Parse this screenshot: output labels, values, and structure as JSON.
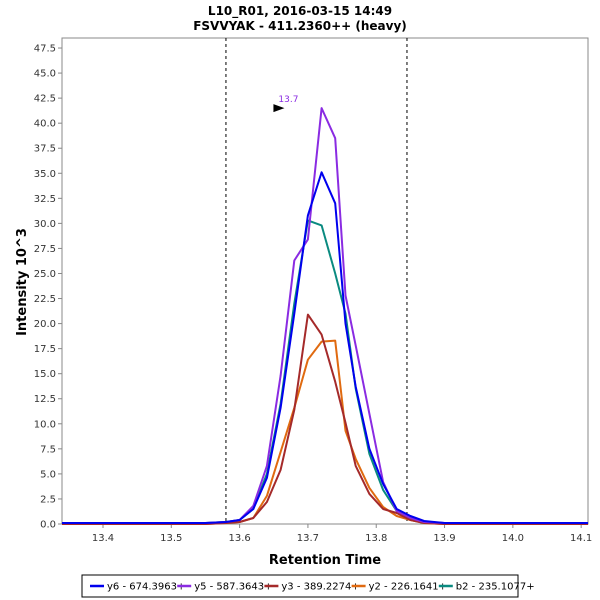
{
  "chart_data": {
    "type": "line",
    "title": "L10_R01, 2016-03-15 14:49",
    "subtitle": "FSVVYAK - 411.2360++ (heavy)",
    "xlabel": "Retention Time",
    "ylabel": "Intensity 10^3",
    "xlim": [
      13.34,
      14.11
    ],
    "ylim": [
      0,
      48.5
    ],
    "xticks": [
      "13.4",
      "13.5",
      "13.6",
      "13.7",
      "13.8",
      "13.9",
      "14.0",
      "14.1"
    ],
    "xtick_values": [
      13.4,
      13.5,
      13.6,
      13.7,
      13.8,
      13.9,
      14.0,
      14.1
    ],
    "yticks": [
      "0.0",
      "2.5",
      "5.0",
      "7.5",
      "10.0",
      "12.5",
      "15.0",
      "17.5",
      "20.0",
      "22.5",
      "25.0",
      "27.5",
      "30.0",
      "32.5",
      "35.0",
      "37.5",
      "40.0",
      "42.5",
      "45.0",
      "47.5"
    ],
    "ytick_values": [
      0,
      2.5,
      5,
      7.5,
      10,
      12.5,
      15,
      17.5,
      20,
      22.5,
      25,
      27.5,
      30,
      32.5,
      35,
      37.5,
      40,
      42.5,
      45,
      47.5
    ],
    "integration_bounds": [
      13.58,
      13.845
    ],
    "peak_annotation": {
      "label": "13.7",
      "x": 13.67,
      "y": 41.5,
      "color": "#8a2be2"
    },
    "x": [
      13.34,
      13.4,
      13.5,
      13.55,
      13.58,
      13.6,
      13.62,
      13.64,
      13.66,
      13.68,
      13.7,
      13.72,
      13.74,
      13.755,
      13.77,
      13.79,
      13.81,
      13.83,
      13.85,
      13.87,
      13.9,
      14.0,
      14.11
    ],
    "series": [
      {
        "name": "y6 - 674.3963+",
        "color": "#0000ee",
        "values": [
          0.1,
          0.1,
          0.1,
          0.1,
          0.2,
          0.4,
          1.5,
          4.6,
          11.6,
          21.0,
          30.8,
          35.1,
          32.0,
          20.0,
          13.7,
          7.5,
          4.0,
          1.5,
          0.8,
          0.3,
          0.1,
          0.1,
          0.1
        ]
      },
      {
        "name": "y5 - 587.3643+",
        "color": "#8a2be2",
        "values": [
          0.1,
          0.1,
          0.1,
          0.1,
          0.2,
          0.4,
          1.8,
          5.8,
          14.8,
          26.3,
          28.4,
          41.5,
          38.5,
          22.8,
          17.8,
          11.0,
          4.2,
          1.3,
          0.6,
          0.2,
          0.1,
          0.1,
          0.1
        ]
      },
      {
        "name": "y3 - 389.2274+",
        "color": "#a52a2a",
        "values": [
          0.0,
          0.0,
          0.0,
          0.0,
          0.1,
          0.2,
          0.6,
          2.2,
          5.4,
          11.4,
          20.9,
          18.9,
          14.2,
          10.1,
          5.8,
          3.0,
          1.5,
          1.1,
          0.4,
          0.1,
          0.0,
          0.0,
          0.0
        ]
      },
      {
        "name": "y2 - 226.1641+",
        "color": "#e06a10",
        "values": [
          0.0,
          0.0,
          0.0,
          0.0,
          0.1,
          0.2,
          0.6,
          2.8,
          7.2,
          11.6,
          16.4,
          18.2,
          18.3,
          9.3,
          6.5,
          3.6,
          1.7,
          0.8,
          0.4,
          0.1,
          0.0,
          0.0,
          0.0
        ]
      },
      {
        "name": "b2 - 235.1077+",
        "color": "#0a8a80",
        "values": [
          0.1,
          0.1,
          0.1,
          0.1,
          0.2,
          0.4,
          1.5,
          5.0,
          12.0,
          22.0,
          30.3,
          29.8,
          25.0,
          21.0,
          13.5,
          7.0,
          3.4,
          1.3,
          0.6,
          0.2,
          0.1,
          0.1,
          0.1
        ]
      }
    ],
    "legend_position": "bottom"
  }
}
